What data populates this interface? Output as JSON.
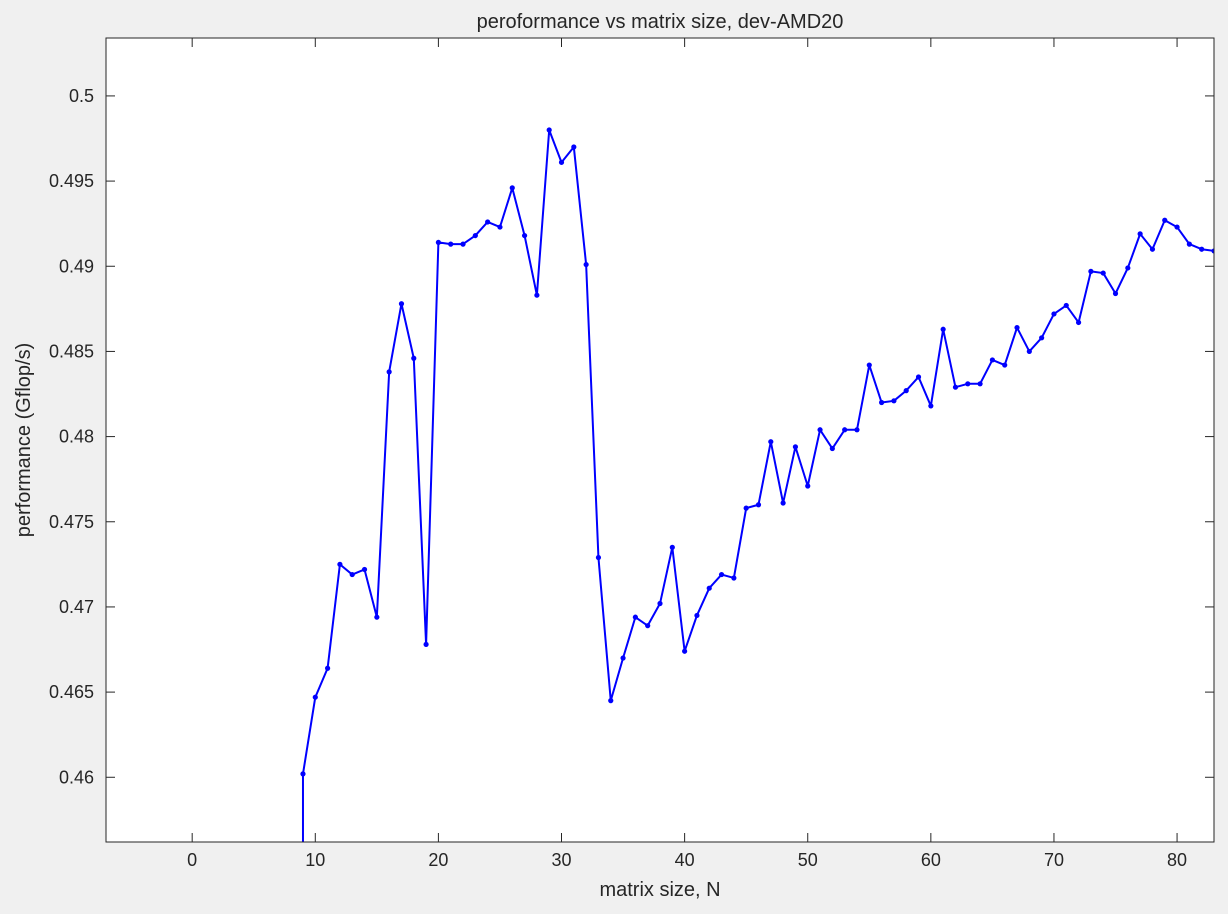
{
  "chart_data": {
    "type": "line",
    "title": "peroformance vs matrix size, dev-AMD20",
    "xlabel": "matrix size, N",
    "ylabel": "performance (Gflop/s)",
    "xlim": [
      -7,
      83
    ],
    "ylim": [
      0.4562,
      0.5034
    ],
    "xticks": [
      0,
      10,
      20,
      30,
      40,
      50,
      60,
      70,
      80
    ],
    "yticks": [
      0.46,
      0.465,
      0.47,
      0.475,
      0.48,
      0.485,
      0.49,
      0.495,
      0.5
    ],
    "grid": false,
    "legend": "none",
    "colors": {
      "line": "#0000ff",
      "axes": "#262626",
      "plot_bg": "#ffffff",
      "figure_bg": "#f0f0f0"
    },
    "series": [
      {
        "x": [
          9,
          10,
          11,
          12,
          13,
          14,
          15,
          16,
          17,
          18,
          19,
          20,
          21,
          22,
          23,
          24,
          25,
          26,
          27,
          28,
          29,
          30,
          31,
          32,
          33,
          34,
          35,
          36,
          37,
          38,
          39,
          40,
          41,
          42,
          43,
          44,
          45,
          46,
          47,
          48,
          49,
          50,
          51,
          52,
          53,
          54,
          55,
          56,
          57,
          58,
          59,
          60,
          61,
          62,
          63,
          64,
          65,
          66,
          67,
          68,
          69,
          70,
          71,
          72,
          73,
          74,
          75,
          76,
          77,
          78,
          79,
          80,
          81,
          82,
          83
        ],
        "values": [
          0.4602,
          0.4647,
          0.4664,
          0.4725,
          0.4719,
          0.4722,
          0.4694,
          0.4838,
          0.4878,
          0.4846,
          0.4678,
          0.4914,
          0.4913,
          0.4913,
          0.4918,
          0.4926,
          0.4923,
          0.4946,
          0.4918,
          0.4883,
          0.498,
          0.4961,
          0.497,
          0.4901,
          0.4729,
          0.4645,
          0.467,
          0.4694,
          0.4689,
          0.4702,
          0.4735,
          0.4674,
          0.4695,
          0.4711,
          0.4719,
          0.4717,
          0.4758,
          0.476,
          0.4797,
          0.4761,
          0.4794,
          0.4771,
          0.4804,
          0.4793,
          0.4804,
          0.4804,
          0.4842,
          0.482,
          0.4821,
          0.4827,
          0.4835,
          0.4818,
          0.4863,
          0.4829,
          0.4831,
          0.4831,
          0.4845,
          0.4842,
          0.4864,
          0.485,
          0.4858,
          0.4872,
          0.4877,
          0.4867,
          0.4897,
          0.4896,
          0.4884,
          0.4899,
          0.4919,
          0.491,
          0.4927,
          0.4923,
          0.4913,
          0.491,
          0.4909
        ]
      }
    ],
    "drop_segment": {
      "x": 9,
      "from": 0.4602,
      "to": 0.4562
    }
  }
}
